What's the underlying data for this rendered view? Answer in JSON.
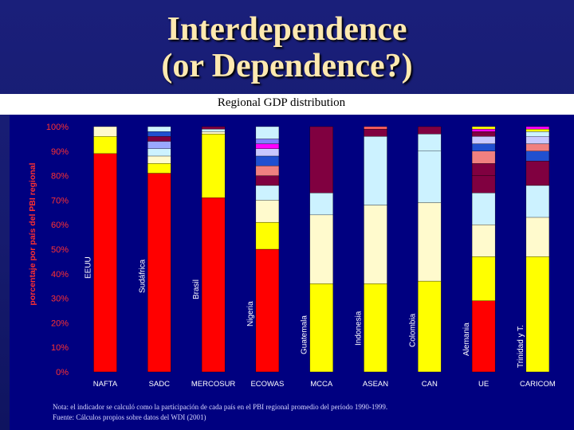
{
  "header": {
    "title_line1": "Interdependence",
    "title_line2": "(or Dependence?)",
    "subtitle": "Regional GDP distribution"
  },
  "notes": {
    "line1": "Nota: el indicador se calculó como la participación de cada país en el PBI regional promedio del período 1990-1999.",
    "line2": "Fuente: Cálculos propios sobre datos del WDI (2001)"
  },
  "colors": {
    "panel": "#000080",
    "axis_text": "#ff3030",
    "category_text": "#ffffff"
  },
  "chart_data": {
    "type": "bar",
    "stacked": true,
    "ylabel": "porcentaje por país del PBI regional",
    "ylim": [
      0,
      100
    ],
    "y_ticks": [
      "0%",
      "10%",
      "20%",
      "30%",
      "40%",
      "50%",
      "60%",
      "70%",
      "80%",
      "90%",
      "100%"
    ],
    "categories": [
      "NAFTA",
      "SADC",
      "MERCOSUR",
      "ECOWAS",
      "MCCA",
      "ASEAN",
      "CAN",
      "UE",
      "CARICOM"
    ],
    "bar_labels": [
      "EEUU",
      "Sudáfrica",
      "Brasil",
      "Nigeria",
      "Guatemala",
      "Indonesia",
      "Colombia",
      "Alemania",
      "Trinidad y T."
    ],
    "segments": [
      [
        {
          "v": 89,
          "c": "#ff0000"
        },
        {
          "v": 7,
          "c": "#ffff00"
        },
        {
          "v": 4,
          "c": "#fffacd"
        }
      ],
      [
        {
          "v": 81,
          "c": "#ff0000"
        },
        {
          "v": 4,
          "c": "#ffff00"
        },
        {
          "v": 3,
          "c": "#fffacd"
        },
        {
          "v": 3,
          "c": "#ccf2ff"
        },
        {
          "v": 3,
          "c": "#9aa8ff"
        },
        {
          "v": 2,
          "c": "#800040"
        },
        {
          "v": 2,
          "c": "#2050d0"
        },
        {
          "v": 2,
          "c": "#ccf2ff"
        }
      ],
      [
        {
          "v": 71,
          "c": "#ff0000"
        },
        {
          "v": 26,
          "c": "#ffff00"
        },
        {
          "v": 1,
          "c": "#fffacd"
        },
        {
          "v": 1,
          "c": "#ccf2ff"
        },
        {
          "v": 1,
          "c": "#800040"
        }
      ],
      [
        {
          "v": 50,
          "c": "#ff0000"
        },
        {
          "v": 11,
          "c": "#ffff00"
        },
        {
          "v": 9,
          "c": "#fffacd"
        },
        {
          "v": 6,
          "c": "#ccf2ff"
        },
        {
          "v": 4,
          "c": "#800040"
        },
        {
          "v": 4,
          "c": "#f08080"
        },
        {
          "v": 4,
          "c": "#2050d0"
        },
        {
          "v": 3,
          "c": "#c8c8ff"
        },
        {
          "v": 2,
          "c": "#ff00ff"
        },
        {
          "v": 2,
          "c": "#8080ff"
        },
        {
          "v": 5,
          "c": "#ccf2ff"
        }
      ],
      [
        {
          "v": 36,
          "c": "#ffff00"
        },
        {
          "v": 28,
          "c": "#fffacd"
        },
        {
          "v": 9,
          "c": "#ccf2ff"
        },
        {
          "v": 27,
          "c": "#800040"
        }
      ],
      [
        {
          "v": 36,
          "c": "#ffff00"
        },
        {
          "v": 32,
          "c": "#fffacd"
        },
        {
          "v": 28,
          "c": "#ccf2ff"
        },
        {
          "v": 3,
          "c": "#800040"
        },
        {
          "v": 1,
          "c": "#ff6060"
        }
      ],
      [
        {
          "v": 37,
          "c": "#ffff00"
        },
        {
          "v": 32,
          "c": "#fffacd"
        },
        {
          "v": 21,
          "c": "#ccf2ff"
        },
        {
          "v": 7,
          "c": "#ccf2ff"
        },
        {
          "v": 3,
          "c": "#800040"
        }
      ],
      [
        {
          "v": 29,
          "c": "#ff0000"
        },
        {
          "v": 18,
          "c": "#ffff00"
        },
        {
          "v": 13,
          "c": "#fffacd"
        },
        {
          "v": 13,
          "c": "#ccf2ff"
        },
        {
          "v": 7,
          "c": "#800040"
        },
        {
          "v": 5,
          "c": "#800040"
        },
        {
          "v": 5,
          "c": "#f08080"
        },
        {
          "v": 3,
          "c": "#2050d0"
        },
        {
          "v": 3,
          "c": "#c8c8ff"
        },
        {
          "v": 2,
          "c": "#800040"
        },
        {
          "v": 1,
          "c": "#ff00ff"
        },
        {
          "v": 1,
          "c": "#ffff00"
        }
      ],
      [
        {
          "v": 47,
          "c": "#ffff00"
        },
        {
          "v": 16,
          "c": "#fffacd"
        },
        {
          "v": 13,
          "c": "#ccf2ff"
        },
        {
          "v": 10,
          "c": "#800040"
        },
        {
          "v": 4,
          "c": "#2050d0"
        },
        {
          "v": 3,
          "c": "#f08080"
        },
        {
          "v": 3,
          "c": "#c8c8ff"
        },
        {
          "v": 2,
          "c": "#ccf2ff"
        },
        {
          "v": 1,
          "c": "#ffff00"
        },
        {
          "v": 1,
          "c": "#ff00ff"
        }
      ]
    ]
  }
}
